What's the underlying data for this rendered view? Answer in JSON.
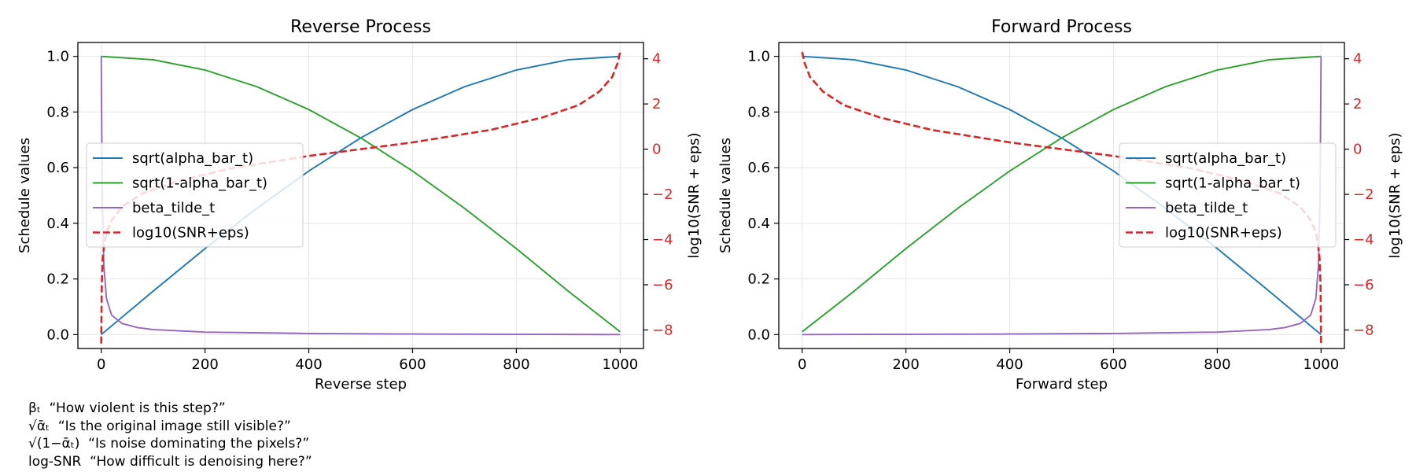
{
  "colors": {
    "sqrt_alpha_bar": "#1f77b4",
    "sqrt_one_minus_alpha_bar": "#2ca02c",
    "beta_tilde": "#9467bd",
    "log_snr": "#d62728"
  },
  "chart_data": [
    {
      "type": "line",
      "title": "Reverse Process",
      "xlabel": "Reverse step",
      "ylabel": "Schedule values",
      "y2label": "log10(SNR + eps)",
      "xlim": [
        -45,
        1045
      ],
      "ylim": [
        -0.05,
        1.05
      ],
      "y2lim": [
        -8.82,
        4.72
      ],
      "xticks": [
        "0",
        "200",
        "400",
        "600",
        "800",
        "1000"
      ],
      "xtick_values": [
        0,
        200,
        400,
        600,
        800,
        1000
      ],
      "yticks": [
        "0.0",
        "0.2",
        "0.4",
        "0.6",
        "0.8",
        "1.0"
      ],
      "ytick_values": [
        0.0,
        0.2,
        0.4,
        0.6,
        0.8,
        1.0
      ],
      "y2ticks": [
        "−8",
        "−6",
        "−4",
        "−2",
        "0",
        "2",
        "4"
      ],
      "y2tick_values": [
        -8,
        -6,
        -4,
        -2,
        0,
        2,
        4
      ],
      "grid": true,
      "legend_position": "center-left",
      "direction": "reverse",
      "series": [
        {
          "name": "sqrt(alpha_bar_t)",
          "key": "sqrt_alpha_bar",
          "axis": "left",
          "style": "solid",
          "x": [
            0,
            100,
            200,
            300,
            400,
            500,
            600,
            700,
            800,
            900,
            1000
          ],
          "values": [
            0.0,
            0.156,
            0.309,
            0.454,
            0.588,
            0.707,
            0.809,
            0.891,
            0.951,
            0.988,
            1.0
          ]
        },
        {
          "name": "sqrt(1-alpha_bar_t)",
          "key": "sqrt_one_minus_alpha_bar",
          "axis": "left",
          "style": "solid",
          "x": [
            0,
            100,
            200,
            300,
            400,
            500,
            600,
            700,
            800,
            900,
            1000
          ],
          "values": [
            1.0,
            0.988,
            0.951,
            0.891,
            0.809,
            0.707,
            0.588,
            0.454,
            0.309,
            0.156,
            0.01
          ]
        },
        {
          "name": "beta_tilde_t",
          "key": "beta_tilde",
          "axis": "left",
          "style": "solid",
          "x": [
            0,
            2,
            5,
            10,
            20,
            40,
            70,
            100,
            200,
            400,
            600,
            800,
            1000
          ],
          "values": [
            1.0,
            0.5,
            0.25,
            0.13,
            0.07,
            0.04,
            0.025,
            0.018,
            0.009,
            0.004,
            0.002,
            0.001,
            0.0
          ]
        },
        {
          "name": "log10(SNR+eps)",
          "key": "log_snr",
          "axis": "right",
          "style": "dashed",
          "x": [
            0,
            1,
            3,
            6,
            10,
            20,
            40,
            80,
            150,
            250,
            400,
            500,
            600,
            750,
            850,
            920,
            960,
            985,
            995,
            1000
          ],
          "values": [
            -8.6,
            -6.0,
            -4.8,
            -4.2,
            -3.7,
            -3.15,
            -2.55,
            -1.95,
            -1.4,
            -0.85,
            -0.3,
            0.0,
            0.3,
            0.85,
            1.4,
            1.95,
            2.55,
            3.2,
            3.8,
            4.3
          ]
        }
      ]
    },
    {
      "type": "line",
      "title": "Forward Process",
      "xlabel": "Forward step",
      "ylabel": "Schedule values",
      "y2label": "log10(SNR + eps)",
      "xlim": [
        -45,
        1045
      ],
      "ylim": [
        -0.05,
        1.05
      ],
      "y2lim": [
        -8.82,
        4.72
      ],
      "xticks": [
        "0",
        "200",
        "400",
        "600",
        "800",
        "1000"
      ],
      "xtick_values": [
        0,
        200,
        400,
        600,
        800,
        1000
      ],
      "yticks": [
        "0.0",
        "0.2",
        "0.4",
        "0.6",
        "0.8",
        "1.0"
      ],
      "ytick_values": [
        0.0,
        0.2,
        0.4,
        0.6,
        0.8,
        1.0
      ],
      "y2ticks": [
        "−8",
        "−6",
        "−4",
        "−2",
        "0",
        "2",
        "4"
      ],
      "y2tick_values": [
        -8,
        -6,
        -4,
        -2,
        0,
        2,
        4
      ],
      "grid": true,
      "legend_position": "center-right",
      "direction": "forward",
      "series": [
        {
          "name": "sqrt(alpha_bar_t)",
          "key": "sqrt_alpha_bar",
          "axis": "left",
          "style": "solid",
          "x": [
            0,
            100,
            200,
            300,
            400,
            500,
            600,
            700,
            800,
            900,
            1000
          ],
          "values": [
            1.0,
            0.988,
            0.951,
            0.891,
            0.809,
            0.707,
            0.588,
            0.454,
            0.309,
            0.156,
            0.0
          ]
        },
        {
          "name": "sqrt(1-alpha_bar_t)",
          "key": "sqrt_one_minus_alpha_bar",
          "axis": "left",
          "style": "solid",
          "x": [
            0,
            100,
            200,
            300,
            400,
            500,
            600,
            700,
            800,
            900,
            1000
          ],
          "values": [
            0.01,
            0.156,
            0.309,
            0.454,
            0.588,
            0.707,
            0.809,
            0.891,
            0.951,
            0.988,
            1.0
          ]
        },
        {
          "name": "beta_tilde_t",
          "key": "beta_tilde",
          "axis": "left",
          "style": "solid",
          "x": [
            0,
            200,
            400,
            600,
            800,
            900,
            930,
            960,
            980,
            990,
            995,
            998,
            1000
          ],
          "values": [
            0.0,
            0.001,
            0.002,
            0.004,
            0.009,
            0.018,
            0.025,
            0.04,
            0.07,
            0.13,
            0.25,
            0.5,
            1.0
          ]
        },
        {
          "name": "log10(SNR+eps)",
          "key": "log_snr",
          "axis": "right",
          "style": "dashed",
          "x": [
            0,
            5,
            15,
            40,
            80,
            150,
            250,
            400,
            500,
            600,
            750,
            850,
            920,
            960,
            980,
            990,
            994,
            997,
            999,
            1000
          ],
          "values": [
            4.3,
            3.8,
            3.2,
            2.55,
            1.95,
            1.4,
            0.85,
            0.3,
            0.0,
            -0.3,
            -0.85,
            -1.4,
            -1.95,
            -2.55,
            -3.15,
            -3.7,
            -4.2,
            -4.8,
            -6.0,
            -8.6
          ]
        }
      ]
    }
  ],
  "notes": [
    "βₜ  “How violent is this step?”",
    "√ᾱₜ  “Is the original image still visible?”",
    "√(1−ᾱₜ)  “Is noise dominating the pixels?”",
    "log-SNR  “How difficult is denoising here?”"
  ]
}
